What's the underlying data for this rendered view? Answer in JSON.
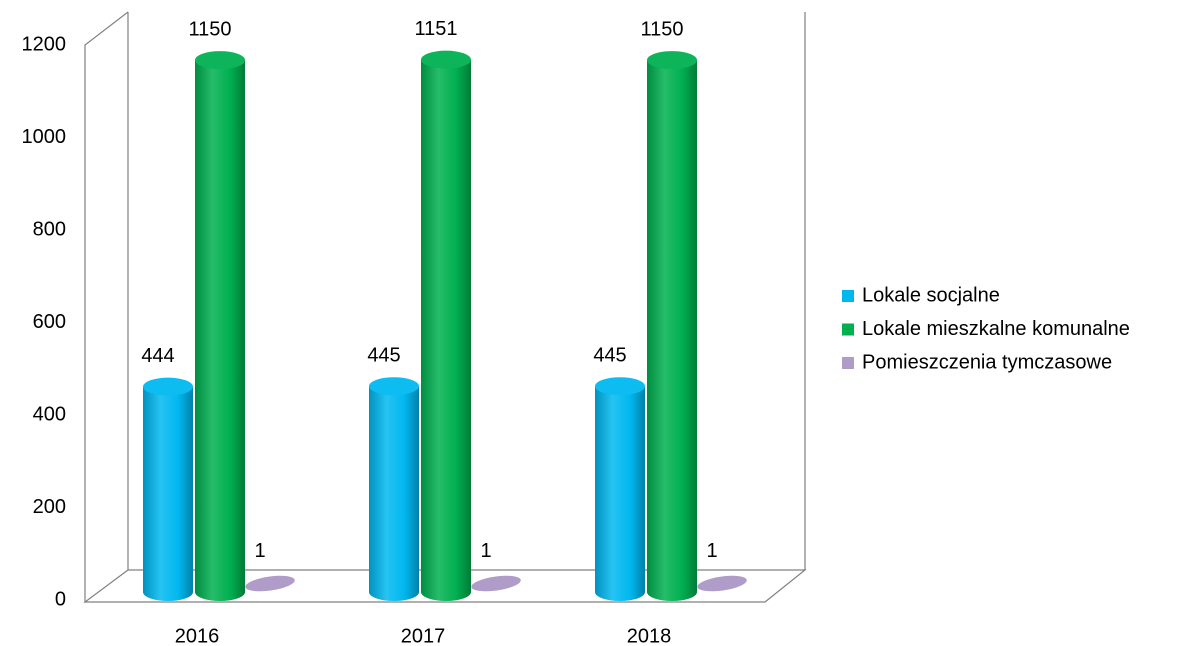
{
  "chart_data": {
    "type": "bar3d",
    "categories": [
      "2016",
      "2017",
      "2018"
    ],
    "series": [
      {
        "name": "Lokale socjalne",
        "color": "#00b8f0",
        "values": [
          444,
          445,
          445
        ]
      },
      {
        "name": "Lokale mieszkalne komunalne",
        "color": "#00b050",
        "values": [
          1150,
          1151,
          1150
        ]
      },
      {
        "name": "Pomieszczenia tymczasowe",
        "color": "#b09cc8",
        "values": [
          1,
          1,
          1
        ]
      }
    ],
    "ylim": [
      0,
      1200
    ],
    "yticks": [
      0,
      200,
      400,
      600,
      800,
      1000,
      1200
    ],
    "legend": "right"
  }
}
